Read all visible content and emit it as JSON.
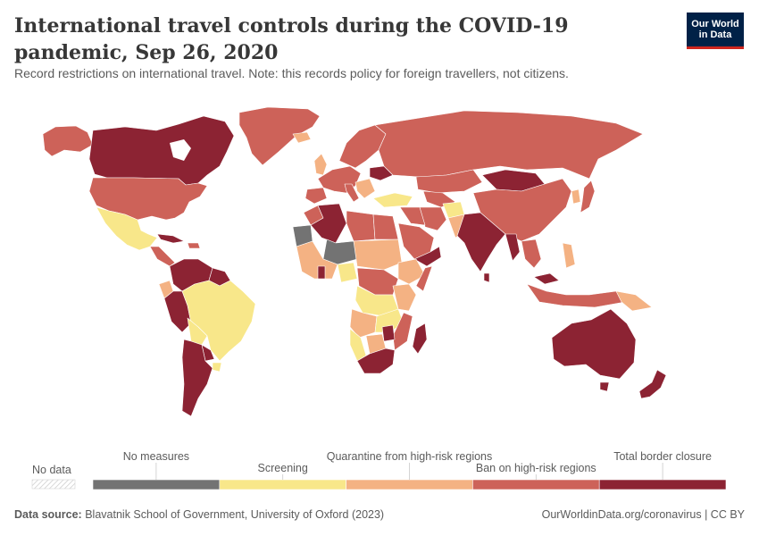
{
  "header": {
    "title": "International travel controls during the COVID-19 pandemic, Sep 26, 2020",
    "subtitle": "Record restrictions on international travel. Note: this records policy for foreign travellers, not citizens.",
    "logo_line1": "Our World",
    "logo_line2": "in Data"
  },
  "legend": {
    "no_data_label": "No data",
    "categories": [
      {
        "label": "No measures",
        "color": "#737373"
      },
      {
        "label": "Screening",
        "color": "#f8e78a"
      },
      {
        "label": "Quarantine from high-risk regions",
        "color": "#f4b283"
      },
      {
        "label": "Ban on high-risk regions",
        "color": "#cd6259"
      },
      {
        "label": "Total border closure",
        "color": "#8c2333"
      }
    ]
  },
  "colors": {
    "ocean": "#ffffff",
    "border": "#ffffff"
  },
  "footer": {
    "source_label": "Data source:",
    "source_text": "Blavatnik School of Government, University of Oxford (2023)",
    "url_text": "OurWorldinData.org/coronavirus | CC BY"
  }
}
